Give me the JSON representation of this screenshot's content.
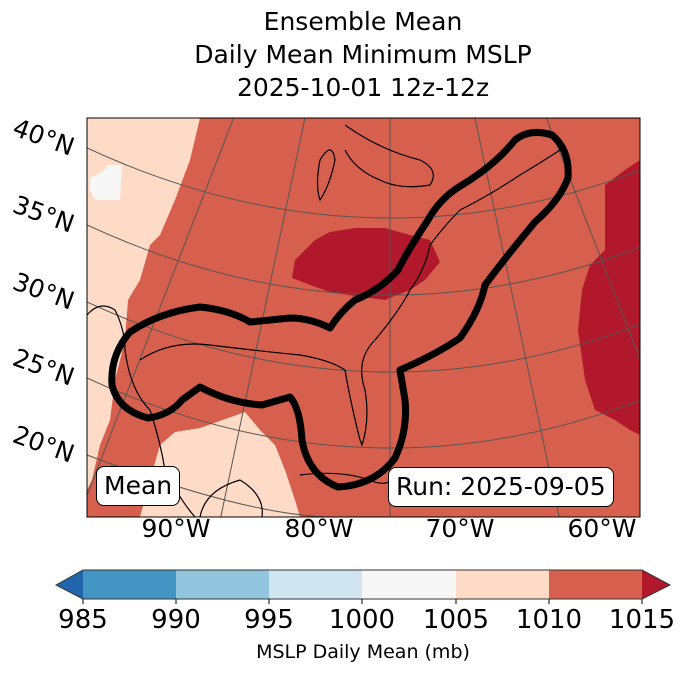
{
  "title": [
    "Ensemble Mean",
    "Daily Mean Minimum MSLP",
    "2025-10-01 12z-12z"
  ],
  "lat_labels": [
    "40°N",
    "35°N",
    "30°N",
    "25°N",
    "20°N"
  ],
  "lon_labels": [
    "90°W",
    "80°W",
    "70°W",
    "60°W"
  ],
  "mean_box": "Mean",
  "run_box": "Run: 2025-09-05",
  "colorbar": {
    "ticks": [
      "985",
      "990",
      "995",
      "1000",
      "1005",
      "1010",
      "1015"
    ],
    "label": "MSLP Daily Mean (mb)",
    "colors": [
      "#4393c3",
      "#92c5de",
      "#d1e5f0",
      "#f7f7f7",
      "#fddbc7",
      "#d6604d"
    ],
    "under_color": "#2166ac",
    "over_color": "#b2182b"
  },
  "chart_data": {
    "type": "heatmap",
    "title": "Ensemble Mean Daily Mean Minimum MSLP 2025-10-01 12z-12z",
    "levels": [
      985,
      990,
      995,
      1000,
      1005,
      1010,
      1015
    ],
    "extend": "both",
    "colorbar_label": "MSLP Daily Mean (mb)",
    "lat_ticks": [
      40,
      35,
      30,
      25,
      20
    ],
    "lon_ticks": [
      -90,
      -80,
      -70,
      -60
    ],
    "regions": [
      {
        "area": "western edge / Texas-Mexico interior",
        "range": "1005-1010"
      },
      {
        "area": "southern Gulf / Yucatan",
        "range": "1005-1010"
      },
      {
        "area": "small patch near western edge ~37°N",
        "range": "1000-1005"
      },
      {
        "area": "most of eastern US, Gulf, western Atlantic",
        "range": "1010-1015"
      },
      {
        "area": "Ohio Valley / Mid-Atlantic",
        "range": ">1015"
      },
      {
        "area": "central Atlantic east of 62°W",
        "range": ">1015"
      }
    ],
    "contour": "black outline enclosing the Gulf Coast, Florida and US East Coast to Nova Scotia"
  }
}
